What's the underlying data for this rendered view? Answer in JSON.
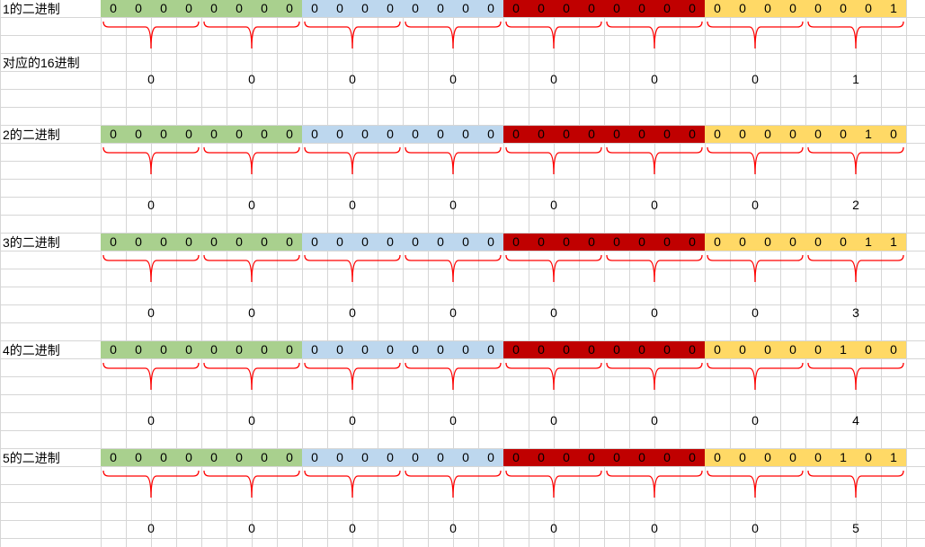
{
  "colors": {
    "group1": "#a9d08e",
    "group2": "#bdd7ee",
    "group3": "#c00000",
    "group4": "#ffd966",
    "brace": "#ff0000",
    "grid": "#d6d6d6"
  },
  "hex_header": "对应的16进制",
  "rows": [
    {
      "label": "1的二进制",
      "bits": [
        "0",
        "0",
        "0",
        "0",
        "0",
        "0",
        "0",
        "0",
        "0",
        "0",
        "0",
        "0",
        "0",
        "0",
        "0",
        "0",
        "0",
        "0",
        "0",
        "0",
        "0",
        "0",
        "0",
        "0",
        "0",
        "0",
        "0",
        "0",
        "0",
        "0",
        "0",
        "1"
      ],
      "hex": [
        "0",
        "0",
        "0",
        "0",
        "0",
        "0",
        "0",
        "1"
      ]
    },
    {
      "label": "2的二进制",
      "bits": [
        "0",
        "0",
        "0",
        "0",
        "0",
        "0",
        "0",
        "0",
        "0",
        "0",
        "0",
        "0",
        "0",
        "0",
        "0",
        "0",
        "0",
        "0",
        "0",
        "0",
        "0",
        "0",
        "0",
        "0",
        "0",
        "0",
        "0",
        "0",
        "0",
        "0",
        "1",
        "0"
      ],
      "hex": [
        "0",
        "0",
        "0",
        "0",
        "0",
        "0",
        "0",
        "2"
      ]
    },
    {
      "label": "3的二进制",
      "bits": [
        "0",
        "0",
        "0",
        "0",
        "0",
        "0",
        "0",
        "0",
        "0",
        "0",
        "0",
        "0",
        "0",
        "0",
        "0",
        "0",
        "0",
        "0",
        "0",
        "0",
        "0",
        "0",
        "0",
        "0",
        "0",
        "0",
        "0",
        "0",
        "0",
        "0",
        "1",
        "1"
      ],
      "hex": [
        "0",
        "0",
        "0",
        "0",
        "0",
        "0",
        "0",
        "3"
      ]
    },
    {
      "label": "4的二进制",
      "bits": [
        "0",
        "0",
        "0",
        "0",
        "0",
        "0",
        "0",
        "0",
        "0",
        "0",
        "0",
        "0",
        "0",
        "0",
        "0",
        "0",
        "0",
        "0",
        "0",
        "0",
        "0",
        "0",
        "0",
        "0",
        "0",
        "0",
        "0",
        "0",
        "0",
        "1",
        "0",
        "0"
      ],
      "hex": [
        "0",
        "0",
        "0",
        "0",
        "0",
        "0",
        "0",
        "4"
      ]
    },
    {
      "label": "5的二进制",
      "bits": [
        "0",
        "0",
        "0",
        "0",
        "0",
        "0",
        "0",
        "0",
        "0",
        "0",
        "0",
        "0",
        "0",
        "0",
        "0",
        "0",
        "0",
        "0",
        "0",
        "0",
        "0",
        "0",
        "0",
        "0",
        "0",
        "0",
        "0",
        "0",
        "0",
        "1",
        "0",
        "1"
      ],
      "hex": [
        "0",
        "0",
        "0",
        "0",
        "0",
        "0",
        "0",
        "5"
      ]
    }
  ]
}
